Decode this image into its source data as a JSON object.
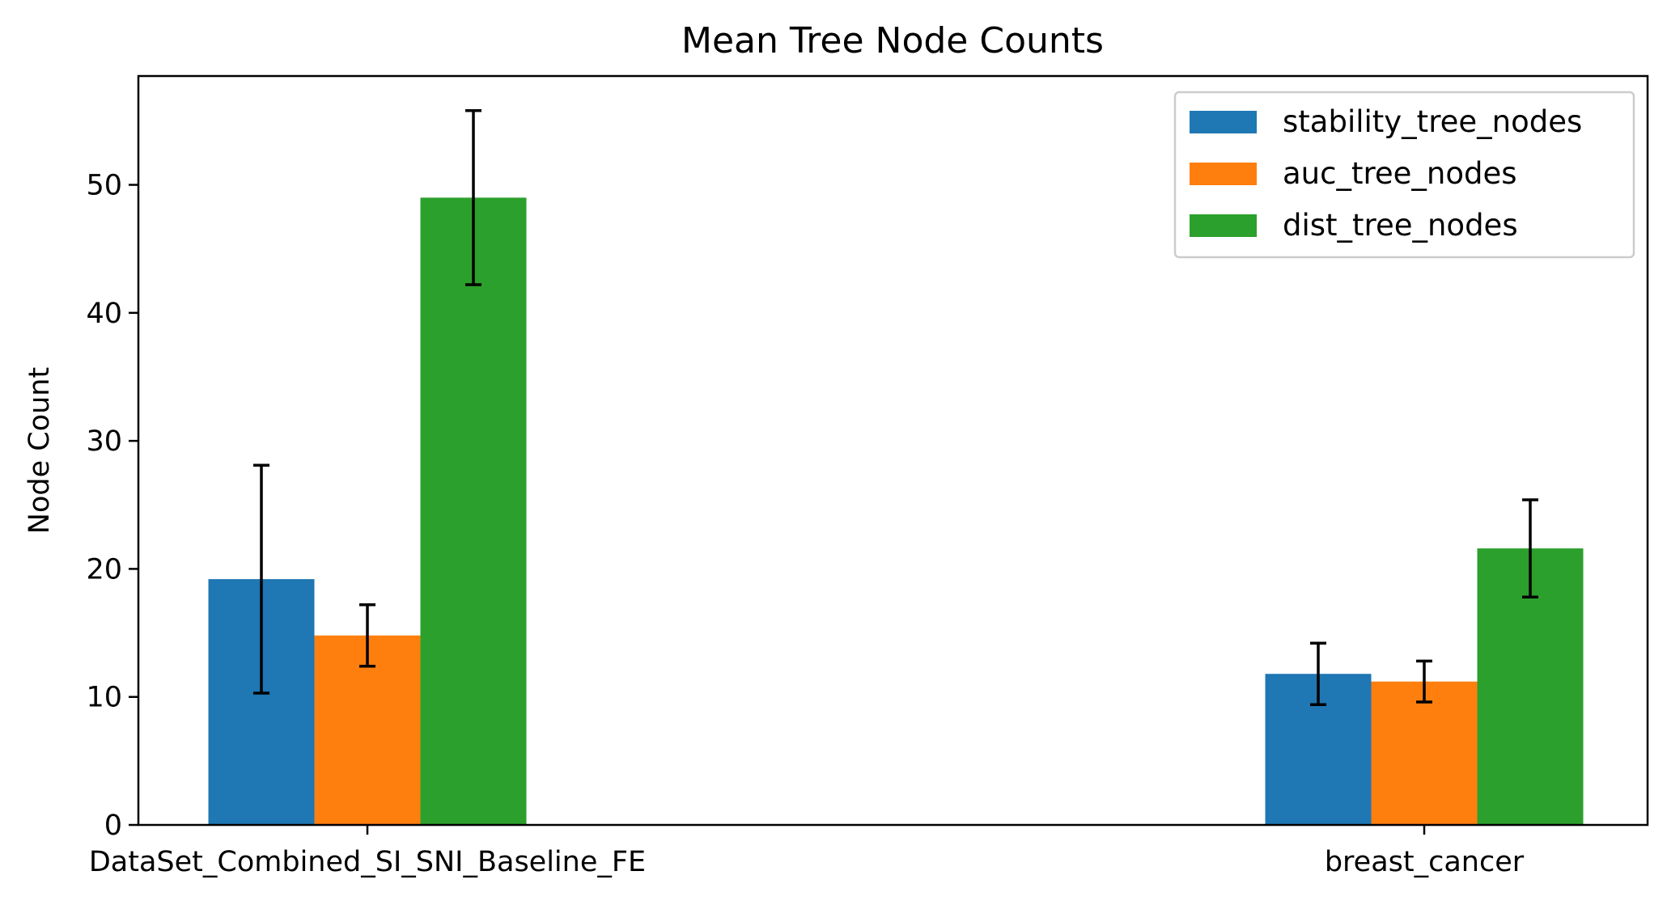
{
  "chart_data": {
    "type": "bar",
    "title": "Mean Tree Node Counts",
    "xlabel": "",
    "ylabel": "Node Count",
    "categories": [
      "DataSet_Combined_SI_SNI_Baseline_FE",
      "breast_cancer"
    ],
    "ylim": [
      0,
      58.5
    ],
    "yticks": [
      0,
      10,
      20,
      30,
      40,
      50
    ],
    "grid": false,
    "legend_position": "top-right",
    "series": [
      {
        "name": "stability_tree_nodes",
        "color": "#1f77b4",
        "values": [
          19.2,
          11.8
        ],
        "errors": [
          8.9,
          2.4
        ]
      },
      {
        "name": "auc_tree_nodes",
        "color": "#ff7f0e",
        "values": [
          14.8,
          11.2
        ],
        "errors": [
          2.4,
          1.6
        ]
      },
      {
        "name": "dist_tree_nodes",
        "color": "#2ca02c",
        "values": [
          49.0,
          21.6
        ],
        "errors": [
          6.8,
          3.8
        ]
      }
    ]
  }
}
